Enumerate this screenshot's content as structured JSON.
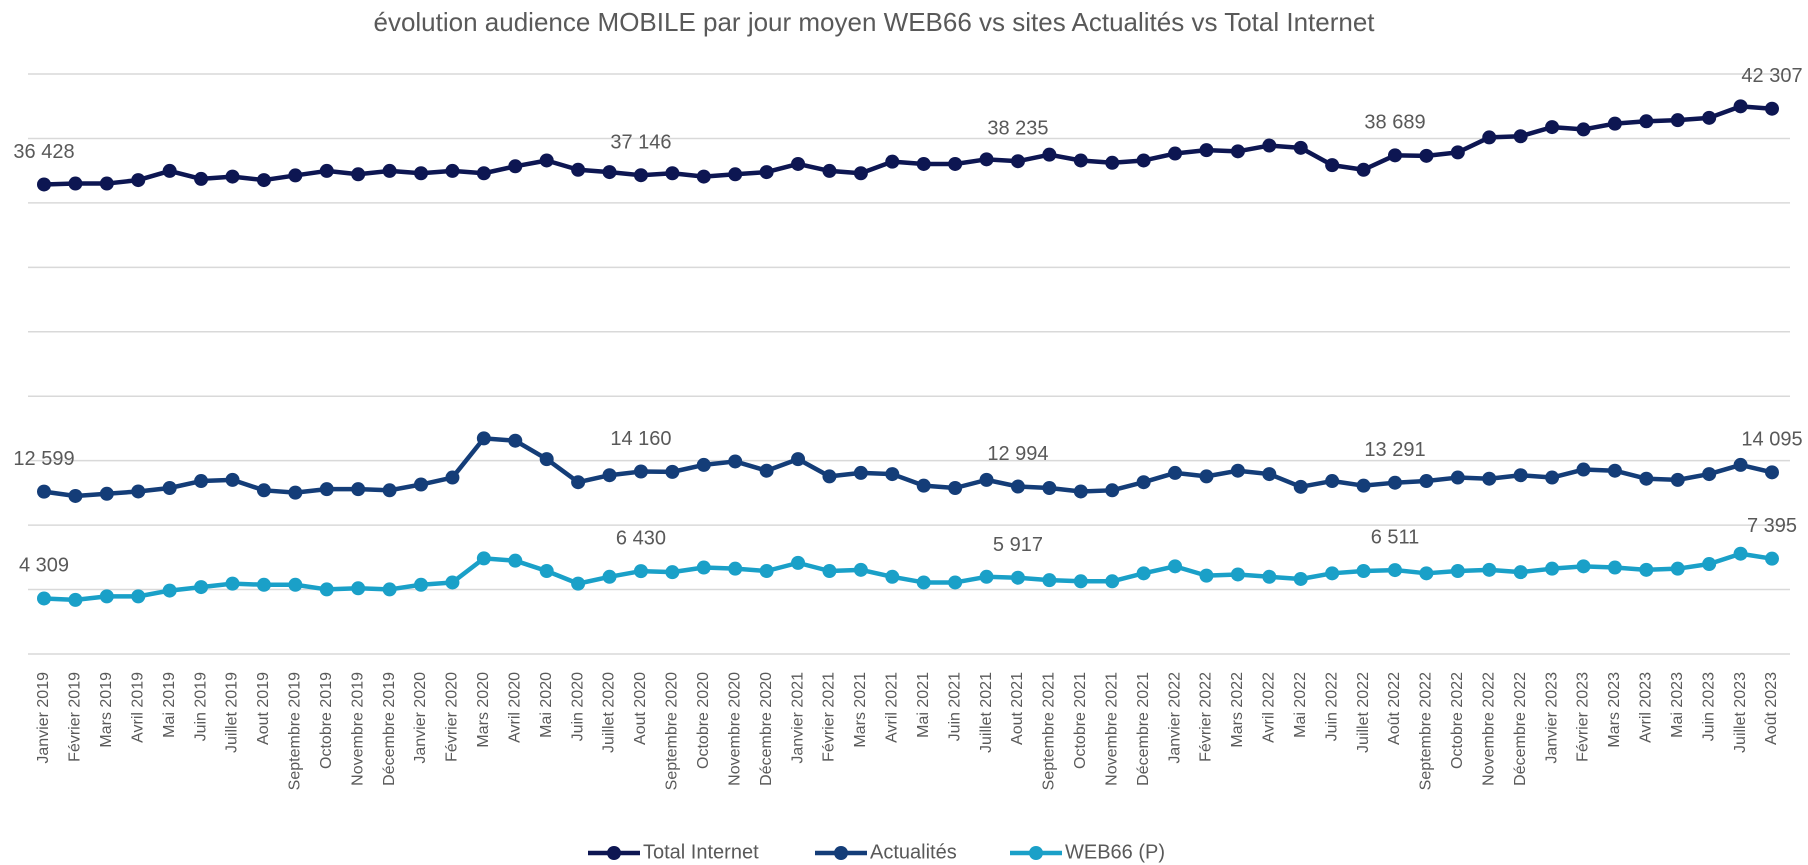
{
  "chart_data": {
    "type": "line",
    "title": "évolution audience MOBILE par jour moyen WEB66 vs sites Actualités vs Total Internet",
    "categories": [
      "Janvier 2019",
      "Février 2019",
      "Mars 2019",
      "Avril 2019",
      "Mai 2019",
      "Juin 2019",
      "Juillet 2019",
      "Aout 2019",
      "Septembre 2019",
      "Octobre 2019",
      "Novembre 2019",
      "Décembre 2019",
      "Janvier 2020",
      "Février 2020",
      "Mars 2020",
      "Avril 2020",
      "Mai 2020",
      "Juin 2020",
      "Juillet 2020",
      "Aout 2020",
      "Septembre 2020",
      "Octobre 2020",
      "Novembre 2020",
      "Décembre 2020",
      "Janvier 2021",
      "Février 2021",
      "Mars 2021",
      "Avril 2021",
      "Mai 2021",
      "Juin 2021",
      "Juillet 2021",
      "Aout 2021",
      "Septembre 2021",
      "Octobre 2021",
      "Novembre 2021",
      "Décembre 2021",
      "Janvier 2022",
      "Février 2022",
      "Mars 2022",
      "Avril 2022",
      "Mai 2022",
      "Juin 2022",
      "Juillet 2022",
      "Août 2022",
      "Septembre 2022",
      "Octobre 2022",
      "Novembre 2022",
      "Décembre 2022",
      "Janvier 2023",
      "Février 2023",
      "Mars 2023",
      "Avril 2023",
      "Mai 2023",
      "Juin 2023",
      "Juillet 2023",
      "Août 2023"
    ],
    "series": [
      {
        "name": "Total Internet",
        "color": "#0d1652",
        "values": [
          36428,
          36500,
          36500,
          36770,
          37480,
          36860,
          37040,
          36770,
          37130,
          37480,
          37220,
          37480,
          37300,
          37480,
          37300,
          37840,
          38290,
          37570,
          37390,
          37146,
          37300,
          37040,
          37220,
          37390,
          38020,
          37480,
          37300,
          38200,
          38020,
          38020,
          38380,
          38235,
          38740,
          38290,
          38110,
          38290,
          38830,
          39090,
          39000,
          39450,
          39270,
          37930,
          37570,
          38689,
          38650,
          38920,
          40080,
          40170,
          40880,
          40700,
          41150,
          41330,
          41420,
          41600,
          42490,
          42307
        ],
        "value_labels": [
          "36 428",
          null,
          null,
          null,
          null,
          null,
          null,
          null,
          null,
          null,
          null,
          null,
          null,
          null,
          null,
          null,
          null,
          null,
          null,
          "37 146",
          null,
          null,
          null,
          null,
          null,
          null,
          null,
          null,
          null,
          null,
          null,
          "38 235",
          null,
          null,
          null,
          null,
          null,
          null,
          null,
          null,
          null,
          null,
          null,
          "38 689",
          null,
          null,
          null,
          null,
          null,
          null,
          null,
          null,
          null,
          null,
          null,
          "42 307"
        ]
      },
      {
        "name": "Actualités",
        "color": "#143d78",
        "values": [
          12599,
          12260,
          12430,
          12610,
          12880,
          13420,
          13510,
          12700,
          12520,
          12790,
          12790,
          12700,
          13150,
          13690,
          16730,
          16550,
          15120,
          13330,
          13870,
          14160,
          14130,
          14670,
          14940,
          14220,
          15120,
          13780,
          14050,
          13960,
          13060,
          12880,
          13510,
          12994,
          12880,
          12610,
          12700,
          13330,
          14050,
          13780,
          14220,
          13960,
          12970,
          13420,
          13060,
          13291,
          13420,
          13690,
          13600,
          13870,
          13690,
          14310,
          14220,
          13600,
          13510,
          13960,
          14670,
          14095
        ],
        "value_labels": [
          "12 599",
          null,
          null,
          null,
          null,
          null,
          null,
          null,
          null,
          null,
          null,
          null,
          null,
          null,
          null,
          null,
          null,
          null,
          null,
          "14 160",
          null,
          null,
          null,
          null,
          null,
          null,
          null,
          null,
          null,
          null,
          null,
          "12 994",
          null,
          null,
          null,
          null,
          null,
          null,
          null,
          null,
          null,
          null,
          null,
          "13 291",
          null,
          null,
          null,
          null,
          null,
          null,
          null,
          null,
          null,
          null,
          null,
          "14 095"
        ]
      },
      {
        "name": "WEB66 (P)",
        "color": "#1aa0c8",
        "values": [
          4309,
          4200,
          4470,
          4470,
          4920,
          5190,
          5460,
          5370,
          5370,
          5010,
          5100,
          5010,
          5370,
          5550,
          7420,
          7240,
          6440,
          5460,
          5990,
          6430,
          6350,
          6710,
          6620,
          6440,
          7070,
          6440,
          6530,
          5990,
          5550,
          5550,
          5990,
          5917,
          5730,
          5640,
          5640,
          6260,
          6800,
          6080,
          6170,
          5990,
          5820,
          6260,
          6440,
          6511,
          6260,
          6440,
          6530,
          6350,
          6620,
          6800,
          6710,
          6530,
          6620,
          6980,
          7780,
          7395
        ],
        "value_labels": [
          "4 309",
          null,
          null,
          null,
          null,
          null,
          null,
          null,
          null,
          null,
          null,
          null,
          null,
          null,
          null,
          null,
          null,
          null,
          null,
          "6 430",
          null,
          null,
          null,
          null,
          null,
          null,
          null,
          null,
          null,
          null,
          null,
          "5 917",
          null,
          null,
          null,
          null,
          null,
          null,
          null,
          null,
          null,
          null,
          null,
          "6 511",
          null,
          null,
          null,
          null,
          null,
          null,
          null,
          null,
          null,
          null,
          null,
          "7 395"
        ]
      }
    ],
    "ylim": [
      0,
      45000
    ],
    "yticks": [
      0,
      5000,
      10000,
      15000,
      20000,
      25000,
      30000,
      35000,
      40000,
      45000
    ],
    "grid": true,
    "legend": "bottom"
  }
}
